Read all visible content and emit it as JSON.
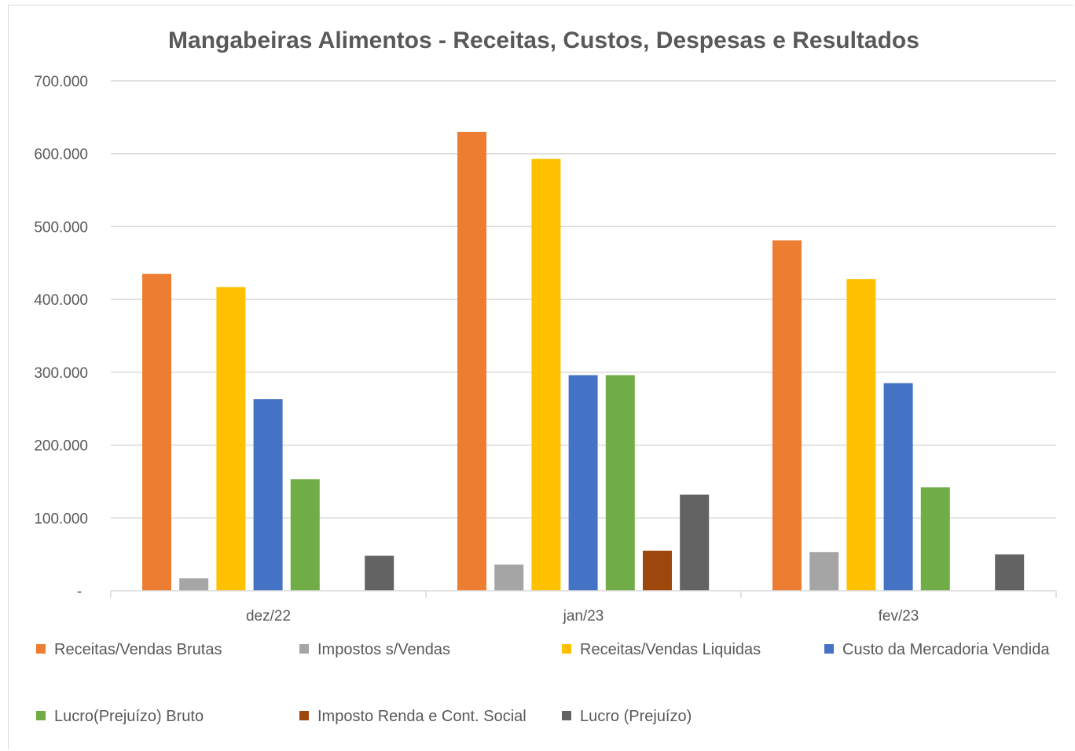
{
  "chart_data": {
    "type": "bar",
    "title": "Mangabeiras Alimentos - Receitas, Custos, Despesas e Resultados",
    "xlabel": "",
    "ylabel": "",
    "ylim": [
      0,
      700000
    ],
    "y_ticks": [
      0,
      100000,
      200000,
      300000,
      400000,
      500000,
      600000,
      700000
    ],
    "y_tick_labels": [
      "-",
      "100.000",
      "200.000",
      "300.000",
      "400.000",
      "500.000",
      "600.000",
      "700.000"
    ],
    "grid": true,
    "legend_position": "bottom",
    "categories": [
      "dez/22",
      "jan/23",
      "fev/23"
    ],
    "series": [
      {
        "name": "Receitas/Vendas Brutas",
        "color": "#ed7d31",
        "values": [
          435000,
          630000,
          481000
        ]
      },
      {
        "name": "Impostos s/Vendas",
        "color": "#a5a5a5",
        "values": [
          17000,
          36000,
          53000
        ]
      },
      {
        "name": "Receitas/Vendas Liquidas",
        "color": "#ffc000",
        "values": [
          417000,
          593000,
          428000
        ]
      },
      {
        "name": "Custo da Mercadoria Vendida",
        "color": "#4472c4",
        "values": [
          263000,
          296000,
          285000
        ]
      },
      {
        "name": "Lucro(Prejuízo) Bruto",
        "color": "#70ad47",
        "values": [
          153000,
          296000,
          142000
        ]
      },
      {
        "name": "Imposto Renda e Cont. Social",
        "color": "#9e480e",
        "values": [
          0,
          55000,
          0
        ]
      },
      {
        "name": "Lucro (Prejuízo)",
        "color": "#636363",
        "values": [
          48000,
          132000,
          50000
        ]
      }
    ]
  }
}
